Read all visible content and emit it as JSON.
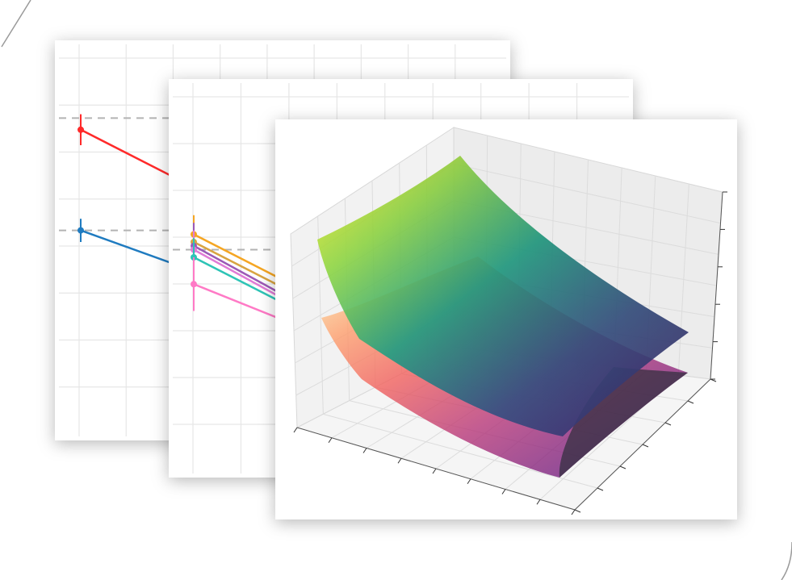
{
  "colors": {
    "background": "#ffffff",
    "panel": "#ffffff",
    "grid": "#e6e6e6",
    "reference_line": "#b3b3b3",
    "pane3d": "#f2f2f2"
  },
  "chart_data": [
    {
      "type": "line",
      "title": "",
      "xlabel": "",
      "ylabel": "",
      "grid": true,
      "reference_lines": [
        0.82,
        0.53
      ],
      "series": [
        {
          "color": "#ff2a2a",
          "error": 0.04,
          "points": [
            [
              0,
              0.79
            ],
            [
              1,
              0.62
            ]
          ]
        },
        {
          "color": "#1f7bc0",
          "error": 0.03,
          "points": [
            [
              0,
              0.53
            ],
            [
              1,
              0.41
            ]
          ]
        }
      ]
    },
    {
      "type": "line",
      "title": "",
      "xlabel": "",
      "ylabel": "",
      "grid": true,
      "reference_lines": [
        0.58
      ],
      "series": [
        {
          "color": "#f5a623",
          "error": 0.05,
          "points": [
            [
              0,
              0.62
            ],
            [
              1,
              0.48
            ]
          ]
        },
        {
          "color": "#d9a441",
          "error": 0.04,
          "points": [
            [
              0,
              0.6
            ],
            [
              1,
              0.46
            ]
          ]
        },
        {
          "color": "#9b59b6",
          "error": 0.06,
          "points": [
            [
              0,
              0.59
            ],
            [
              1,
              0.44
            ]
          ]
        },
        {
          "color": "#e07bd6",
          "error": 0.05,
          "points": [
            [
              0,
              0.58
            ],
            [
              1,
              0.43
            ]
          ]
        },
        {
          "color": "#2ec4b6",
          "error": 0.05,
          "points": [
            [
              0,
              0.56
            ],
            [
              1,
              0.42
            ]
          ]
        },
        {
          "color": "#ff7ac6",
          "error": 0.07,
          "points": [
            [
              0,
              0.49
            ],
            [
              1,
              0.38
            ]
          ]
        }
      ]
    },
    {
      "type": "surface",
      "title": "",
      "grid": true,
      "surfaces": [
        {
          "colormap": "viridis",
          "alpha": 0.85
        },
        {
          "colormap": "magma",
          "alpha": 0.75
        }
      ]
    }
  ]
}
